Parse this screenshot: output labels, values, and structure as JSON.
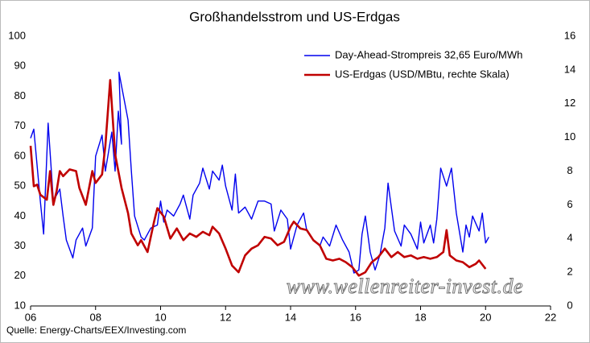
{
  "chart_data": {
    "type": "line",
    "title": "Großhandelsstrom und US-Erdgas",
    "source": "Quelle: Energy-Charts/EEX/Investing.com",
    "watermark": "www.wellenreiter-invest.de",
    "legend": "upper right",
    "grid": false,
    "xlim": [
      2006,
      2022
    ],
    "xticks": [
      {
        "value": 2006,
        "label": "06"
      },
      {
        "value": 2008,
        "label": "08"
      },
      {
        "value": 2010,
        "label": "10"
      },
      {
        "value": 2012,
        "label": "12"
      },
      {
        "value": 2014,
        "label": "14"
      },
      {
        "value": 2016,
        "label": "16"
      },
      {
        "value": 2018,
        "label": "18"
      },
      {
        "value": 2020,
        "label": "20"
      },
      {
        "value": 2022,
        "label": "22"
      }
    ],
    "ylim": [
      10,
      100
    ],
    "yticks": [
      10,
      20,
      30,
      40,
      50,
      60,
      70,
      80,
      90,
      100
    ],
    "y2lim": [
      0,
      16
    ],
    "y2ticks": [
      0,
      2,
      4,
      6,
      8,
      10,
      12,
      14,
      16
    ],
    "series": [
      {
        "name": "Day-Ahead-Strompreis 32,65 Euro/MWh",
        "color": "#0000ee",
        "axis": "y",
        "x": [
          2006.0,
          2006.1,
          2006.3,
          2006.4,
          2006.54,
          2006.7,
          2006.9,
          2007.0,
          2007.1,
          2007.3,
          2007.4,
          2007.6,
          2007.7,
          2007.9,
          2008.0,
          2008.2,
          2008.3,
          2008.5,
          2008.6,
          2008.7,
          2008.8,
          2008.72,
          2009.0,
          2009.1,
          2009.2,
          2009.4,
          2009.5,
          2009.7,
          2009.9,
          2010.0,
          2010.1,
          2010.2,
          2010.4,
          2010.6,
          2010.7,
          2010.9,
          2011.0,
          2011.2,
          2011.3,
          2011.5,
          2011.6,
          2011.8,
          2011.9,
          2012.0,
          2012.2,
          2012.3,
          2012.4,
          2012.6,
          2012.8,
          2013.0,
          2013.2,
          2013.4,
          2013.5,
          2013.7,
          2013.9,
          2014.0,
          2014.2,
          2014.4,
          2014.5,
          2014.7,
          2014.9,
          2015.0,
          2015.2,
          2015.4,
          2015.6,
          2015.8,
          2015.95,
          2016.1,
          2016.2,
          2016.3,
          2016.45,
          2016.6,
          2016.75,
          2016.9,
          2017.0,
          2017.2,
          2017.4,
          2017.5,
          2017.7,
          2017.9,
          2018.0,
          2018.1,
          2018.3,
          2018.4,
          2018.5,
          2018.55,
          2018.62,
          2018.8,
          2018.95,
          2019.1,
          2019.3,
          2019.4,
          2019.5,
          2019.6,
          2019.8,
          2019.9,
          2020.0,
          2020.1
        ],
        "values": [
          66,
          69,
          45,
          34,
          71,
          45,
          49,
          40,
          32,
          26,
          32,
          36,
          30,
          36,
          60,
          67,
          55,
          68,
          55,
          75,
          64,
          88,
          72,
          55,
          40,
          33,
          32,
          36,
          37,
          45,
          38,
          42,
          40,
          44,
          47,
          39,
          47,
          51,
          56,
          49,
          55,
          52,
          57,
          50,
          42,
          54,
          41,
          43,
          39,
          45,
          45,
          44,
          35,
          42,
          39,
          29,
          37,
          41,
          35,
          32,
          30,
          33,
          30,
          37,
          32,
          28,
          21,
          22,
          34,
          40,
          28,
          22,
          27,
          36,
          51,
          35,
          30,
          37,
          34,
          29,
          38,
          31,
          37,
          31,
          39,
          46,
          56,
          50,
          56,
          41,
          28,
          37,
          33,
          40,
          35,
          41,
          31,
          33
        ]
      },
      {
        "name": "US-Erdgas (USD/MBtu, rechte Skala)",
        "color": "#c00000",
        "axis": "y2",
        "x": [
          2006.0,
          2006.1,
          2006.2,
          2006.3,
          2006.5,
          2006.6,
          2006.7,
          2006.8,
          2006.9,
          2007.0,
          2007.2,
          2007.4,
          2007.5,
          2007.7,
          2007.9,
          2008.0,
          2008.2,
          2008.3,
          2008.45,
          2008.6,
          2008.8,
          2009.0,
          2009.1,
          2009.3,
          2009.4,
          2009.6,
          2009.8,
          2009.9,
          2010.1,
          2010.3,
          2010.5,
          2010.7,
          2010.9,
          2011.1,
          2011.3,
          2011.5,
          2011.6,
          2011.8,
          2012.0,
          2012.2,
          2012.4,
          2012.6,
          2012.8,
          2013.0,
          2013.2,
          2013.4,
          2013.6,
          2013.8,
          2014.0,
          2014.1,
          2014.3,
          2014.5,
          2014.7,
          2014.9,
          2015.1,
          2015.3,
          2015.5,
          2015.7,
          2015.9,
          2016.1,
          2016.3,
          2016.5,
          2016.7,
          2016.9,
          2017.1,
          2017.3,
          2017.5,
          2017.7,
          2017.9,
          2018.1,
          2018.3,
          2018.5,
          2018.7,
          2018.8,
          2018.9,
          2019.1,
          2019.3,
          2019.5,
          2019.7,
          2019.8,
          2020.0
        ],
        "values": [
          9.5,
          7.1,
          7.2,
          6.6,
          6.3,
          8.0,
          6.0,
          6.8,
          8.0,
          7.7,
          8.1,
          8.0,
          7.0,
          6.0,
          8.0,
          7.3,
          7.8,
          9.5,
          13.4,
          9.0,
          7.0,
          5.5,
          4.3,
          3.6,
          3.9,
          3.2,
          5.0,
          5.8,
          5.3,
          4.0,
          4.6,
          3.9,
          4.3,
          4.1,
          4.4,
          4.2,
          4.7,
          4.3,
          3.4,
          2.4,
          2.0,
          3.0,
          3.4,
          3.6,
          4.1,
          4.0,
          3.6,
          3.8,
          4.7,
          5.0,
          4.6,
          4.5,
          3.9,
          3.6,
          2.8,
          2.7,
          2.8,
          2.6,
          2.3,
          1.8,
          2.0,
          2.6,
          2.9,
          3.4,
          2.9,
          3.2,
          2.9,
          3.0,
          2.8,
          2.9,
          2.8,
          2.9,
          3.2,
          4.5,
          3.0,
          2.7,
          2.6,
          2.3,
          2.5,
          2.7,
          2.2
        ]
      }
    ]
  }
}
